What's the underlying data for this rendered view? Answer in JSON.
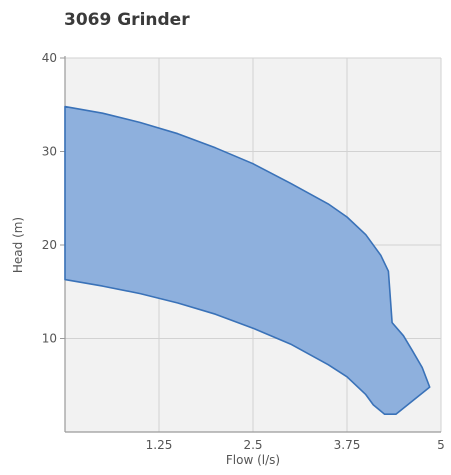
{
  "chart_data": {
    "type": "area",
    "title": "3069 Grinder",
    "xlabel": "Flow (l/s)",
    "ylabel": "Head (m)",
    "xlim": [
      0,
      5
    ],
    "ylim": [
      0,
      40
    ],
    "x_ticks": [
      1.25,
      2.5,
      3.75,
      5
    ],
    "x_tick_labels": [
      "1.25",
      "2.5",
      "3.75",
      "5"
    ],
    "y_ticks": [
      10,
      20,
      30,
      40
    ],
    "y_tick_labels": [
      "10",
      "20",
      "30",
      "40"
    ],
    "grid": true,
    "fill_color": "#8eb0dd",
    "line_color": "#3a72b8",
    "series": [
      {
        "upper": {
          "x": [
            0,
            0.5,
            1.0,
            1.5,
            2.0,
            2.5,
            3.0,
            3.5,
            3.75,
            4.0,
            4.2,
            4.3,
            4.32,
            4.35,
            4.5,
            4.62,
            4.75,
            4.85
          ],
          "y": [
            34.8,
            34.1,
            33.1,
            31.9,
            30.4,
            28.7,
            26.6,
            24.4,
            23.0,
            21.1,
            18.9,
            17.2,
            15.0,
            11.7,
            10.3,
            8.7,
            6.9,
            4.8
          ]
        },
        "lower": {
          "x": [
            0,
            0.5,
            1.0,
            1.5,
            2.0,
            2.5,
            3.0,
            3.5,
            3.75,
            4.0,
            4.1,
            4.25,
            4.4,
            4.85
          ],
          "y": [
            16.3,
            15.6,
            14.8,
            13.8,
            12.6,
            11.1,
            9.4,
            7.2,
            5.9,
            4.0,
            2.9,
            1.9,
            1.9,
            4.8
          ]
        }
      }
    ]
  }
}
